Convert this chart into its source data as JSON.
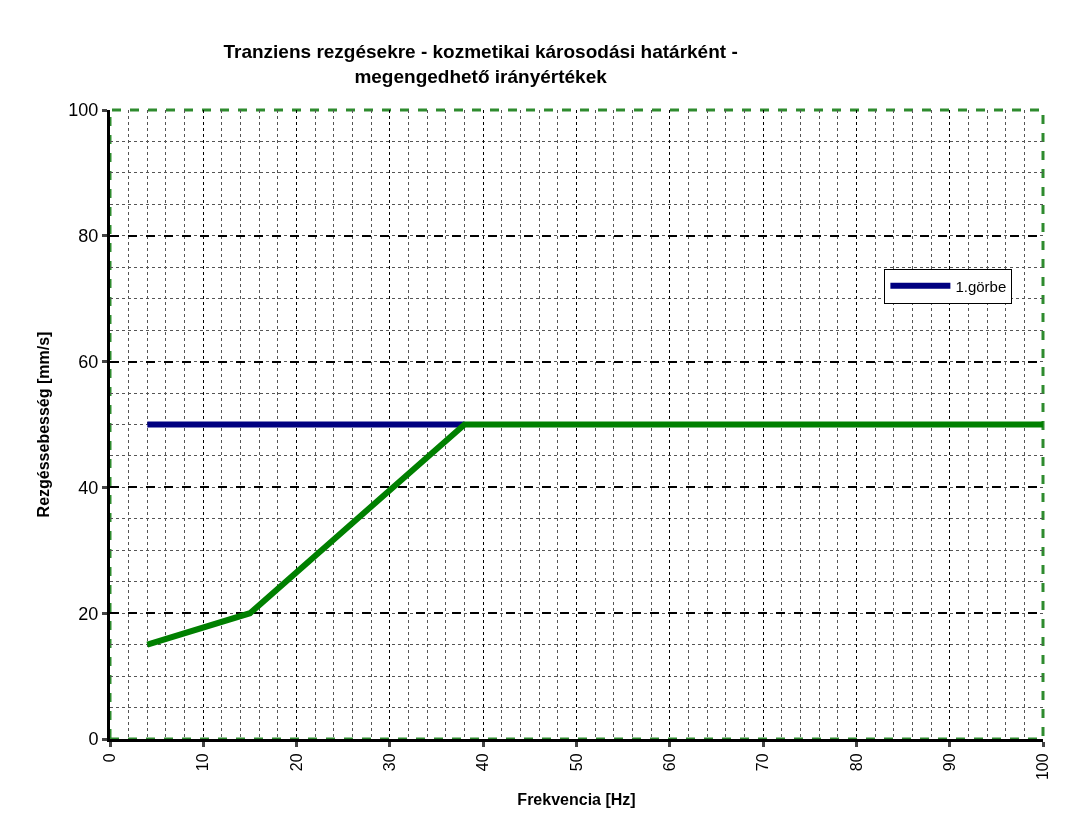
{
  "chart_data": {
    "type": "line",
    "title": "Tranziens rezgésekre - kozmetikai károsodási határként - megengedhető irányértékek",
    "xlabel": "Frekvencia [Hz]",
    "ylabel": "Rezgéssebesség [mm/s]",
    "xlim": [
      0,
      100
    ],
    "xticks": [
      0,
      10,
      20,
      30,
      40,
      50,
      60,
      70,
      80,
      90,
      100
    ],
    "ylim": [
      0,
      100
    ],
    "yticks": [
      0,
      20,
      40,
      60,
      80,
      100
    ],
    "grid": true,
    "legend": "right",
    "marker": "none",
    "line_style": "solid",
    "series": [
      {
        "name": "1.görbe",
        "color": "#000080",
        "x": [
          4,
          38
        ],
        "values": [
          50,
          50
        ]
      },
      {
        "color": "#008000",
        "x": [
          4,
          15,
          38,
          100
        ],
        "values": [
          15,
          20,
          50,
          50
        ]
      }
    ]
  }
}
